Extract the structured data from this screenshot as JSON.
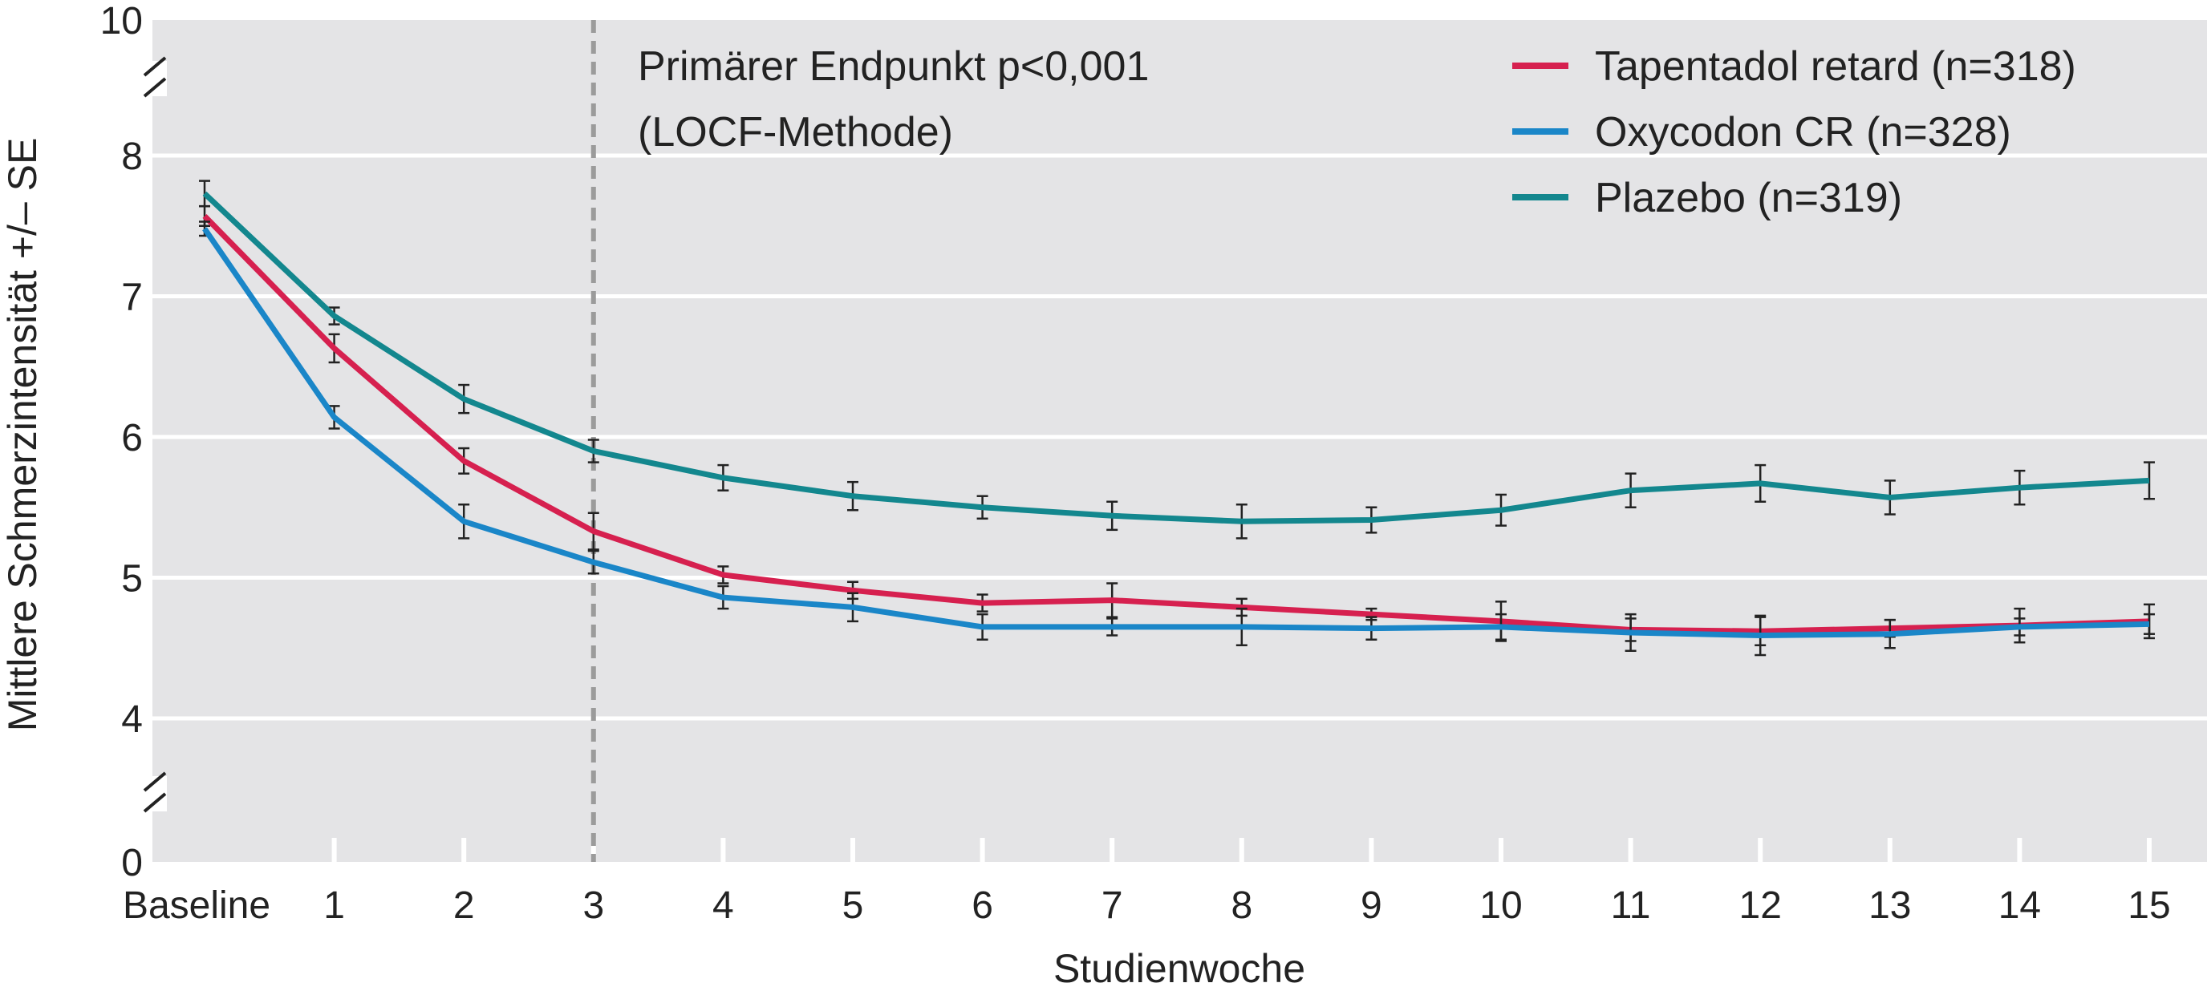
{
  "chart_data": {
    "type": "line",
    "xlabel": "Studienwoche",
    "ylabel": "Mittlere Schmerzintensität +/– SE",
    "categories": [
      "Baseline",
      "1",
      "2",
      "3",
      "4",
      "5",
      "6",
      "7",
      "8",
      "9",
      "10",
      "11",
      "12",
      "13",
      "14",
      "15"
    ],
    "y_ticks": [
      {
        "value": 10,
        "label": "10"
      },
      {
        "value": 8,
        "label": "8"
      },
      {
        "value": 7,
        "label": "7"
      },
      {
        "value": 6,
        "label": "6"
      },
      {
        "value": 5,
        "label": "5"
      },
      {
        "value": 4,
        "label": "4"
      },
      {
        "value": 0,
        "label": "0"
      }
    ],
    "ylim_display": [
      3.0,
      9.0
    ],
    "axis_breaks": [
      "between 8 and 10",
      "between 0 and 4"
    ],
    "grid": true,
    "reference_line": {
      "x_category": "3",
      "style": "dashed"
    },
    "annotation": [
      "Primärer Endpunkt p<0,001",
      "(LOCF-Methode)"
    ],
    "legend_position": "top-right",
    "series": [
      {
        "name": "Tapentadol retard (n=318)",
        "color": "#d6204f",
        "values": [
          7.57,
          6.63,
          5.83,
          5.33,
          5.02,
          4.91,
          4.82,
          4.84,
          4.79,
          4.74,
          4.69,
          4.63,
          4.62,
          4.64,
          4.66,
          4.69
        ],
        "se": [
          0.07,
          0.1,
          0.09,
          0.13,
          0.06,
          0.06,
          0.06,
          0.12,
          0.06,
          0.04,
          0.14,
          0.08,
          0.1,
          0.06,
          0.12,
          0.12
        ]
      },
      {
        "name": "Oxycodon CR (n=328)",
        "color": "#1a86c8",
        "values": [
          7.48,
          6.14,
          5.4,
          5.11,
          4.86,
          4.79,
          4.65,
          4.65,
          4.65,
          4.64,
          4.65,
          4.61,
          4.59,
          4.6,
          4.65,
          4.67
        ],
        "se": [
          0.05,
          0.08,
          0.12,
          0.08,
          0.08,
          0.1,
          0.09,
          0.06,
          0.13,
          0.08,
          0.09,
          0.13,
          0.14,
          0.1,
          0.06,
          0.07
        ]
      },
      {
        "name": "Plazebo (n=319)",
        "color": "#13878e",
        "values": [
          7.73,
          6.86,
          6.27,
          5.9,
          5.71,
          5.58,
          5.5,
          5.44,
          5.4,
          5.41,
          5.48,
          5.62,
          5.67,
          5.57,
          5.64,
          5.69
        ],
        "se": [
          0.09,
          0.06,
          0.1,
          0.08,
          0.09,
          0.1,
          0.08,
          0.1,
          0.12,
          0.09,
          0.11,
          0.12,
          0.13,
          0.12,
          0.12,
          0.13
        ]
      }
    ]
  }
}
